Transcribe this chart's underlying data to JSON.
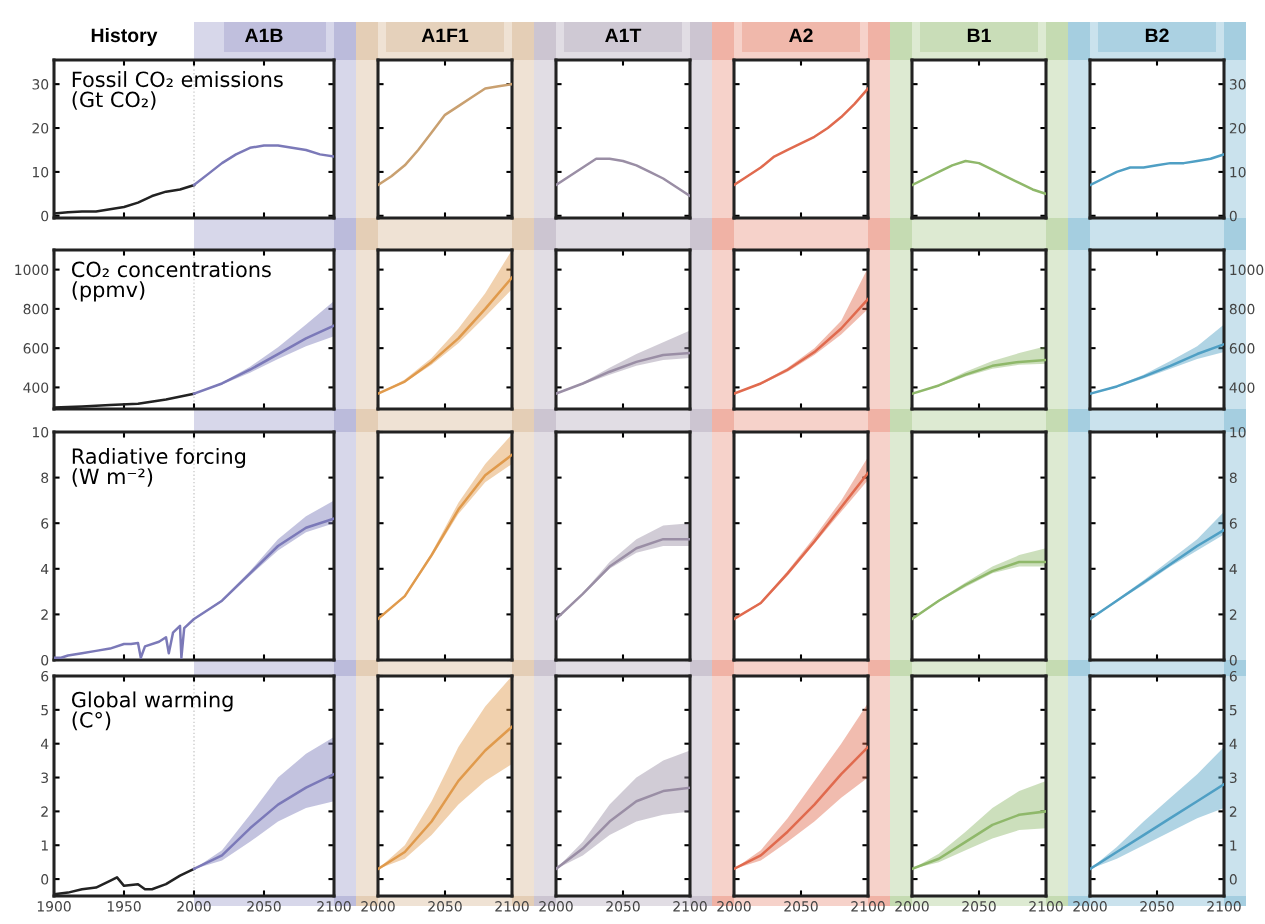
{
  "chart_data": [
    {
      "type": "line",
      "title": "History",
      "subtitle": "A1B",
      "annotations": [
        "Fossil CO₂ emissions\n(Gt CO₂)"
      ],
      "xlim": [
        1900,
        2100
      ],
      "xticks": [
        1900,
        1950,
        2000,
        2050,
        2100
      ],
      "ylim": [
        -0.5,
        35.5
      ],
      "yticks": [
        0,
        10,
        20,
        30
      ],
      "tick_labels": "y",
      "ref_lines": [
        {
          "axis": "x",
          "value": 2000,
          "color": "#cccccc",
          "line_style": "dotted"
        }
      ],
      "series": [
        {
          "color": "#222222",
          "x": [
            1900,
            1910,
            1920,
            1930,
            1940,
            1950,
            1960,
            1970,
            1980,
            1990,
            2000
          ],
          "values": [
            0.5,
            0.8,
            1,
            1,
            1.5,
            2,
            3,
            4.5,
            5.5,
            6,
            7
          ]
        },
        {
          "color": "#7b79b8",
          "x": [
            2000,
            2010,
            2020,
            2030,
            2040,
            2050,
            2060,
            2070,
            2080,
            2090,
            2100
          ],
          "values": [
            7,
            9.5,
            12,
            14,
            15.5,
            16,
            16,
            15.5,
            15,
            14,
            13.5
          ]
        }
      ]
    },
    {
      "type": "line",
      "title": "A1F1",
      "xlim": [
        2000,
        2100
      ],
      "xticks": [
        2000,
        2050,
        2100
      ],
      "ylim": [
        -0.5,
        35.5
      ],
      "yticks": [
        0,
        10,
        20,
        30
      ],
      "tick_labels": false,
      "series": [
        {
          "color": "#c9a070",
          "x": [
            2000,
            2010,
            2020,
            2030,
            2040,
            2050,
            2060,
            2070,
            2080,
            2090,
            2100
          ],
          "values": [
            7,
            9,
            11.5,
            15,
            19,
            23,
            25,
            27,
            29,
            29.5,
            30
          ]
        }
      ]
    },
    {
      "type": "line",
      "title": "A1T",
      "xlim": [
        2000,
        2100
      ],
      "xticks": [
        2000,
        2050,
        2100
      ],
      "ylim": [
        -0.5,
        35.5
      ],
      "yticks": [
        0,
        10,
        20,
        30
      ],
      "tick_labels": false,
      "series": [
        {
          "color": "#9a8ea5",
          "x": [
            2000,
            2010,
            2020,
            2030,
            2040,
            2050,
            2060,
            2070,
            2080,
            2090,
            2100
          ],
          "values": [
            7,
            9,
            11,
            13,
            13,
            12.5,
            11.5,
            10,
            8.5,
            6.5,
            4.5
          ]
        }
      ]
    },
    {
      "type": "line",
      "title": "A2",
      "xlim": [
        2000,
        2100
      ],
      "xticks": [
        2000,
        2050,
        2100
      ],
      "ylim": [
        -0.5,
        35.5
      ],
      "yticks": [
        0,
        10,
        20,
        30
      ],
      "tick_labels": false,
      "series": [
        {
          "color": "#e06a4e",
          "x": [
            2000,
            2010,
            2020,
            2030,
            2040,
            2050,
            2060,
            2070,
            2080,
            2090,
            2100
          ],
          "values": [
            7,
            9,
            11,
            13.5,
            15,
            16.5,
            18,
            20,
            22.5,
            25.5,
            29
          ]
        }
      ]
    },
    {
      "type": "line",
      "title": "B1",
      "xlim": [
        2000,
        2100
      ],
      "xticks": [
        2000,
        2050,
        2100
      ],
      "ylim": [
        -0.5,
        35.5
      ],
      "yticks": [
        0,
        10,
        20,
        30
      ],
      "tick_labels": false,
      "series": [
        {
          "color": "#8fb86a",
          "x": [
            2000,
            2010,
            2020,
            2030,
            2040,
            2050,
            2060,
            2070,
            2080,
            2090,
            2100
          ],
          "values": [
            7,
            8.5,
            10,
            11.5,
            12.5,
            12,
            10.5,
            9,
            7.5,
            6,
            5
          ]
        }
      ]
    },
    {
      "type": "line",
      "title": "B2",
      "xlim": [
        2000,
        2100
      ],
      "xticks": [
        2000,
        2050,
        2100
      ],
      "ylim": [
        -0.5,
        35.5
      ],
      "yticks": [
        0,
        10,
        20,
        30
      ],
      "tick_labels": "y",
      "series": [
        {
          "color": "#4f9fc4",
          "x": [
            2000,
            2010,
            2020,
            2030,
            2040,
            2050,
            2060,
            2070,
            2080,
            2090,
            2100
          ],
          "values": [
            7,
            8.5,
            10,
            11,
            11,
            11.5,
            12,
            12,
            12.5,
            13,
            14
          ]
        }
      ]
    },
    {
      "type": "line",
      "annotations": [
        "CO₂ concentrations\n(ppmv)"
      ],
      "xlim": [
        1900,
        2100
      ],
      "xticks": [
        1900,
        1950,
        2000,
        2050,
        2100
      ],
      "ylim": [
        290,
        1100
      ],
      "yticks": [
        400,
        600,
        800,
        1000
      ],
      "tick_labels": "y",
      "ref_lines": [
        {
          "axis": "x",
          "value": 2000,
          "color": "#cccccc",
          "line_style": "dotted"
        }
      ],
      "series": [
        {
          "color": "#222222",
          "x": [
            1900,
            1920,
            1940,
            1960,
            1980,
            2000
          ],
          "values": [
            297,
            303,
            310,
            317,
            338,
            368
          ]
        },
        {
          "color": "#7b79b8",
          "x": [
            2000,
            2020,
            2040,
            2060,
            2080,
            2100
          ],
          "values": [
            368,
            420,
            490,
            570,
            650,
            715
          ],
          "lower": [
            368,
            415,
            475,
            545,
            610,
            660
          ],
          "upper": [
            368,
            425,
            505,
            605,
            720,
            840
          ]
        }
      ]
    },
    {
      "type": "line",
      "xlim": [
        2000,
        2100
      ],
      "xticks": [
        2000,
        2050,
        2100
      ],
      "ylim": [
        290,
        1100
      ],
      "yticks": [
        400,
        600,
        800,
        1000
      ],
      "tick_labels": false,
      "series": [
        {
          "color": "#e09a4c",
          "x": [
            2000,
            2020,
            2040,
            2060,
            2080,
            2100
          ],
          "values": [
            368,
            430,
            530,
            650,
            800,
            960
          ],
          "lower": [
            368,
            425,
            515,
            625,
            760,
            900
          ],
          "upper": [
            368,
            440,
            550,
            700,
            880,
            1100
          ]
        }
      ]
    },
    {
      "type": "line",
      "xlim": [
        2000,
        2100
      ],
      "xticks": [
        2000,
        2050,
        2100
      ],
      "ylim": [
        290,
        1100
      ],
      "yticks": [
        400,
        600,
        800,
        1000
      ],
      "tick_labels": false,
      "series": [
        {
          "color": "#9a8ea5",
          "x": [
            2000,
            2020,
            2040,
            2060,
            2080,
            2100
          ],
          "values": [
            368,
            420,
            480,
            530,
            565,
            575
          ],
          "lower": [
            368,
            415,
            465,
            510,
            540,
            550
          ],
          "upper": [
            368,
            425,
            500,
            570,
            630,
            690
          ]
        }
      ]
    },
    {
      "type": "line",
      "xlim": [
        2000,
        2100
      ],
      "xticks": [
        2000,
        2050,
        2100
      ],
      "ylim": [
        290,
        1100
      ],
      "yticks": [
        400,
        600,
        800,
        1000
      ],
      "tick_labels": false,
      "series": [
        {
          "color": "#e06a4e",
          "x": [
            2000,
            2020,
            2040,
            2060,
            2080,
            2100
          ],
          "values": [
            368,
            420,
            490,
            580,
            700,
            850
          ],
          "lower": [
            368,
            415,
            480,
            565,
            670,
            800
          ],
          "upper": [
            368,
            425,
            500,
            600,
            740,
            1010
          ]
        }
      ]
    },
    {
      "type": "line",
      "xlim": [
        2000,
        2100
      ],
      "xticks": [
        2000,
        2050,
        2100
      ],
      "ylim": [
        290,
        1100
      ],
      "yticks": [
        400,
        600,
        800,
        1000
      ],
      "tick_labels": false,
      "series": [
        {
          "color": "#8fb86a",
          "x": [
            2000,
            2020,
            2040,
            2060,
            2080,
            2100
          ],
          "values": [
            368,
            410,
            465,
            510,
            530,
            540
          ],
          "lower": [
            368,
            405,
            455,
            495,
            515,
            520
          ],
          "upper": [
            368,
            415,
            480,
            535,
            575,
            610
          ]
        }
      ]
    },
    {
      "type": "line",
      "xlim": [
        2000,
        2100
      ],
      "xticks": [
        2000,
        2050,
        2100
      ],
      "ylim": [
        290,
        1100
      ],
      "yticks": [
        400,
        600,
        800,
        1000
      ],
      "tick_labels": "y",
      "series": [
        {
          "color": "#4f9fc4",
          "x": [
            2000,
            2020,
            2040,
            2060,
            2080,
            2100
          ],
          "values": [
            368,
            405,
            455,
            510,
            570,
            620
          ],
          "lower": [
            368,
            400,
            445,
            495,
            545,
            580
          ],
          "upper": [
            368,
            410,
            465,
            535,
            610,
            720
          ]
        }
      ]
    },
    {
      "type": "line",
      "annotations": [
        "Radiative forcing\n(W m⁻²)"
      ],
      "xlim": [
        1900,
        2100
      ],
      "xticks": [
        1900,
        1950,
        2000,
        2050,
        2100
      ],
      "ylim": [
        0,
        10
      ],
      "yticks": [
        0,
        2,
        4,
        6,
        8,
        10
      ],
      "tick_labels": "y",
      "ref_lines": [
        {
          "axis": "x",
          "value": 2000,
          "color": "#cccccc",
          "line_style": "dotted"
        }
      ],
      "series": [
        {
          "color": "#7b79b8",
          "x": [
            1900,
            1905,
            1910,
            1920,
            1930,
            1940,
            1950,
            1955,
            1960,
            1962,
            1965,
            1975,
            1980,
            1982,
            1985,
            1990,
            1991,
            1993,
            2000,
            2020,
            2040,
            2060,
            2080,
            2100
          ],
          "values": [
            0.1,
            0.1,
            0.2,
            0.3,
            0.4,
            0.5,
            0.7,
            0.7,
            0.75,
            0.1,
            0.6,
            0.8,
            1.0,
            0.3,
            1.2,
            1.5,
            0.1,
            1.4,
            1.8,
            2.6,
            3.8,
            5.0,
            5.8,
            6.2
          ],
          "lower": [
            null,
            null,
            null,
            null,
            null,
            null,
            null,
            null,
            null,
            null,
            null,
            null,
            null,
            null,
            null,
            null,
            null,
            null,
            1.8,
            2.55,
            3.7,
            4.8,
            5.6,
            6.0
          ],
          "upper": [
            null,
            null,
            null,
            null,
            null,
            null,
            null,
            null,
            null,
            null,
            null,
            null,
            null,
            null,
            null,
            null,
            null,
            null,
            1.8,
            2.65,
            3.9,
            5.3,
            6.3,
            7.0
          ]
        }
      ]
    },
    {
      "type": "line",
      "xlim": [
        2000,
        2100
      ],
      "xticks": [
        2000,
        2050,
        2100
      ],
      "ylim": [
        0,
        10
      ],
      "yticks": [
        0,
        2,
        4,
        6,
        8,
        10
      ],
      "tick_labels": false,
      "series": [
        {
          "color": "#e09a4c",
          "x": [
            2000,
            2020,
            2040,
            2060,
            2080,
            2100
          ],
          "values": [
            1.8,
            2.8,
            4.6,
            6.6,
            8.1,
            9.0
          ],
          "lower": [
            1.8,
            2.75,
            4.5,
            6.4,
            7.8,
            8.6
          ],
          "upper": [
            1.8,
            2.85,
            4.7,
            6.9,
            8.6,
            9.9
          ]
        }
      ]
    },
    {
      "type": "line",
      "xlim": [
        2000,
        2100
      ],
      "xticks": [
        2000,
        2050,
        2100
      ],
      "ylim": [
        0,
        10
      ],
      "yticks": [
        0,
        2,
        4,
        6,
        8,
        10
      ],
      "tick_labels": false,
      "series": [
        {
          "color": "#9a8ea5",
          "x": [
            2000,
            2020,
            2040,
            2060,
            2080,
            2100
          ],
          "values": [
            1.8,
            2.9,
            4.1,
            4.9,
            5.3,
            5.3
          ],
          "lower": [
            1.8,
            2.85,
            4.0,
            4.7,
            5.0,
            5.0
          ],
          "upper": [
            1.8,
            2.95,
            4.3,
            5.3,
            5.9,
            6.0
          ]
        }
      ]
    },
    {
      "type": "line",
      "xlim": [
        2000,
        2100
      ],
      "xticks": [
        2000,
        2050,
        2100
      ],
      "ylim": [
        0,
        10
      ],
      "yticks": [
        0,
        2,
        4,
        6,
        8,
        10
      ],
      "tick_labels": false,
      "series": [
        {
          "color": "#e06a4e",
          "x": [
            2000,
            2020,
            2040,
            2060,
            2080,
            2100
          ],
          "values": [
            1.8,
            2.5,
            3.8,
            5.2,
            6.7,
            8.2
          ],
          "lower": [
            1.8,
            2.45,
            3.7,
            5.1,
            6.5,
            7.9
          ],
          "upper": [
            1.8,
            2.55,
            3.9,
            5.4,
            7.0,
            8.9
          ]
        }
      ]
    },
    {
      "type": "line",
      "xlim": [
        2000,
        2100
      ],
      "xticks": [
        2000,
        2050,
        2100
      ],
      "ylim": [
        0,
        10
      ],
      "yticks": [
        0,
        2,
        4,
        6,
        8,
        10
      ],
      "tick_labels": false,
      "series": [
        {
          "color": "#8fb86a",
          "x": [
            2000,
            2020,
            2040,
            2060,
            2080,
            2100
          ],
          "values": [
            1.8,
            2.6,
            3.3,
            3.9,
            4.3,
            4.3
          ],
          "lower": [
            1.8,
            2.55,
            3.2,
            3.8,
            4.1,
            4.1
          ],
          "upper": [
            1.8,
            2.65,
            3.4,
            4.1,
            4.6,
            4.9
          ]
        }
      ]
    },
    {
      "type": "line",
      "xlim": [
        2000,
        2100
      ],
      "xticks": [
        2000,
        2050,
        2100
      ],
      "ylim": [
        0,
        10
      ],
      "yticks": [
        0,
        2,
        4,
        6,
        8,
        10
      ],
      "tick_labels": "y",
      "series": [
        {
          "color": "#4f9fc4",
          "x": [
            2000,
            2020,
            2040,
            2060,
            2080,
            2100
          ],
          "values": [
            1.8,
            2.6,
            3.4,
            4.2,
            5.0,
            5.7
          ],
          "lower": [
            1.8,
            2.55,
            3.3,
            4.1,
            4.8,
            5.5
          ],
          "upper": [
            1.8,
            2.65,
            3.5,
            4.4,
            5.3,
            6.5
          ]
        }
      ]
    },
    {
      "type": "line",
      "annotations": [
        "Global warming\n(C°)"
      ],
      "xlim": [
        1900,
        2100
      ],
      "xticks": [
        1900,
        1950,
        2000,
        2050,
        2100
      ],
      "ylim": [
        -0.5,
        6
      ],
      "yticks": [
        0,
        1,
        2,
        3,
        4,
        5,
        6
      ],
      "ref_lines": [
        {
          "axis": "x",
          "value": 2000,
          "color": "#cccccc",
          "line_style": "dotted"
        }
      ],
      "series": [
        {
          "color": "#222222",
          "x": [
            1900,
            1910,
            1920,
            1930,
            1940,
            1945,
            1950,
            1960,
            1965,
            1970,
            1980,
            1990,
            2000
          ],
          "values": [
            -0.45,
            -0.4,
            -0.3,
            -0.25,
            -0.05,
            0.05,
            -0.2,
            -0.15,
            -0.3,
            -0.3,
            -0.15,
            0.1,
            0.3
          ]
        },
        {
          "color": "#7b79b8",
          "x": [
            2000,
            2020,
            2040,
            2060,
            2080,
            2100
          ],
          "values": [
            0.3,
            0.7,
            1.5,
            2.2,
            2.7,
            3.1
          ],
          "lower": [
            0.3,
            0.55,
            1.1,
            1.7,
            2.1,
            2.3
          ],
          "upper": [
            0.3,
            0.85,
            1.9,
            3.0,
            3.7,
            4.2
          ]
        }
      ]
    },
    {
      "type": "line",
      "xlim": [
        2000,
        2100
      ],
      "xticks": [
        2000,
        2050,
        2100
      ],
      "ylim": [
        -0.5,
        6
      ],
      "yticks": [
        0,
        1,
        2,
        3,
        4,
        5,
        6
      ],
      "tick_labels": "x",
      "series": [
        {
          "color": "#e09a4c",
          "x": [
            2000,
            2020,
            2040,
            2060,
            2080,
            2100
          ],
          "values": [
            0.3,
            0.8,
            1.7,
            2.9,
            3.8,
            4.5
          ],
          "lower": [
            0.3,
            0.6,
            1.3,
            2.2,
            2.9,
            3.4
          ],
          "upper": [
            0.3,
            1.0,
            2.3,
            3.9,
            5.1,
            6.0
          ]
        }
      ]
    },
    {
      "type": "line",
      "xlim": [
        2000,
        2100
      ],
      "xticks": [
        2000,
        2050,
        2100
      ],
      "ylim": [
        -0.5,
        6
      ],
      "yticks": [
        0,
        1,
        2,
        3,
        4,
        5,
        6
      ],
      "tick_labels": "x",
      "series": [
        {
          "color": "#9a8ea5",
          "x": [
            2000,
            2020,
            2040,
            2060,
            2080,
            2100
          ],
          "values": [
            0.3,
            0.9,
            1.7,
            2.3,
            2.6,
            2.7
          ],
          "lower": [
            0.3,
            0.7,
            1.3,
            1.7,
            1.9,
            2.0
          ],
          "upper": [
            0.3,
            1.1,
            2.2,
            3.0,
            3.5,
            3.8
          ]
        }
      ]
    },
    {
      "type": "line",
      "xlim": [
        2000,
        2100
      ],
      "xticks": [
        2000,
        2050,
        2100
      ],
      "ylim": [
        -0.5,
        6
      ],
      "yticks": [
        0,
        1,
        2,
        3,
        4,
        5,
        6
      ],
      "tick_labels": "x",
      "series": [
        {
          "color": "#e06a4e",
          "x": [
            2000,
            2020,
            2040,
            2060,
            2080,
            2100
          ],
          "values": [
            0.3,
            0.7,
            1.4,
            2.2,
            3.1,
            3.9
          ],
          "lower": [
            0.3,
            0.55,
            1.1,
            1.7,
            2.4,
            3.0
          ],
          "upper": [
            0.3,
            0.85,
            1.8,
            2.9,
            4.0,
            5.2
          ]
        }
      ]
    },
    {
      "type": "line",
      "xlim": [
        2000,
        2100
      ],
      "xticks": [
        2000,
        2050,
        2100
      ],
      "ylim": [
        -0.5,
        6
      ],
      "yticks": [
        0,
        1,
        2,
        3,
        4,
        5,
        6
      ],
      "tick_labels": "x",
      "series": [
        {
          "color": "#8fb86a",
          "x": [
            2000,
            2020,
            2040,
            2060,
            2080,
            2100
          ],
          "values": [
            0.3,
            0.6,
            1.1,
            1.6,
            1.9,
            2.0
          ],
          "lower": [
            0.3,
            0.5,
            0.85,
            1.2,
            1.45,
            1.5
          ],
          "upper": [
            0.3,
            0.75,
            1.4,
            2.1,
            2.6,
            2.9
          ]
        }
      ]
    },
    {
      "type": "line",
      "xlim": [
        2000,
        2100
      ],
      "xticks": [
        2000,
        2050,
        2100
      ],
      "ylim": [
        -0.5,
        6
      ],
      "yticks": [
        0,
        1,
        2,
        3,
        4,
        5,
        6
      ],
      "series": [
        {
          "color": "#4f9fc4",
          "x": [
            2000,
            2020,
            2040,
            2060,
            2080,
            2100
          ],
          "values": [
            0.3,
            0.8,
            1.3,
            1.8,
            2.3,
            2.8
          ],
          "lower": [
            0.3,
            0.6,
            1.0,
            1.4,
            1.8,
            2.1
          ],
          "upper": [
            0.3,
            0.95,
            1.7,
            2.4,
            3.1,
            3.9
          ]
        }
      ]
    }
  ]
}
